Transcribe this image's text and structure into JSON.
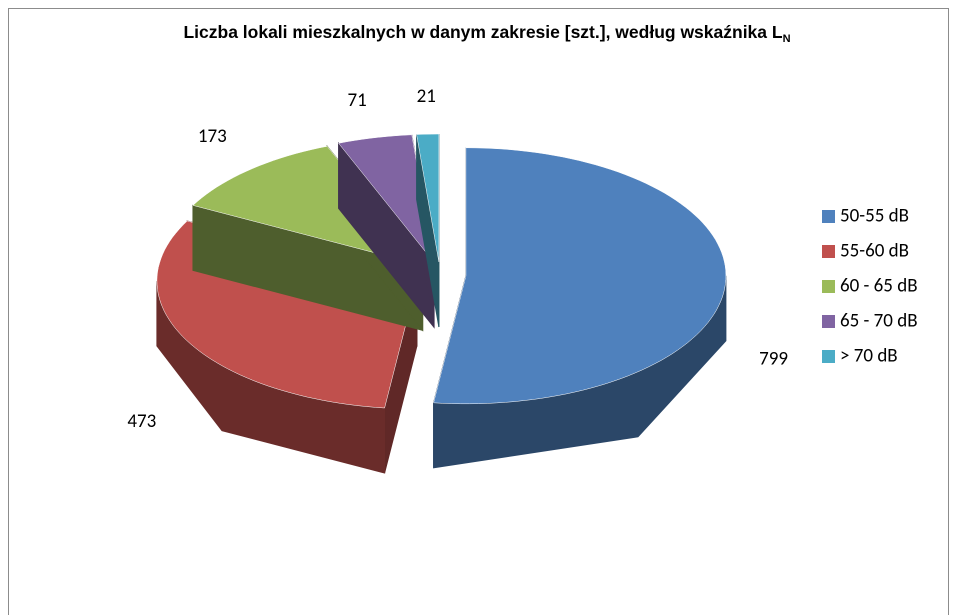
{
  "chart_data": {
    "type": "pie3d",
    "title": "Liczba lokali mieszkalnych w danym zakresie [szt.], według wskaźnika L",
    "title_subscript": "N",
    "categories": [
      "50-55 dB",
      "55-60 dB",
      "60 - 65 dB",
      "65 - 70 dB",
      "> 70 dB"
    ],
    "values": [
      799,
      473,
      173,
      71,
      21
    ],
    "colors": [
      "#4f81bd",
      "#c0504d",
      "#9bbb59",
      "#8064a2",
      "#4bacc6"
    ],
    "legend": "right"
  }
}
